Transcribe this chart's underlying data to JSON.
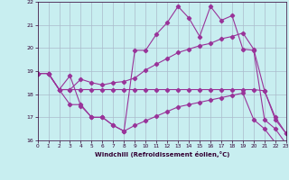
{
  "xlabel": "Windchill (Refroidissement éolien,°C)",
  "background_color": "#c8eef0",
  "grid_color": "#aabbcc",
  "line_color": "#993399",
  "xlim": [
    0,
    23
  ],
  "ylim": [
    16,
    22
  ],
  "xticks": [
    0,
    1,
    2,
    3,
    4,
    5,
    6,
    7,
    8,
    9,
    10,
    11,
    12,
    13,
    14,
    15,
    16,
    17,
    18,
    19,
    20,
    21,
    22,
    23
  ],
  "yticks": [
    16,
    17,
    18,
    19,
    20,
    21,
    22
  ],
  "line_top_x": [
    0,
    1,
    2,
    3,
    4,
    5,
    6,
    7,
    8,
    9,
    10,
    11,
    12,
    13,
    14,
    15,
    16,
    17,
    18,
    19,
    20,
    21,
    22,
    23
  ],
  "line_top_y": [
    18.9,
    18.9,
    18.2,
    18.8,
    17.5,
    17.0,
    17.0,
    16.65,
    16.4,
    19.9,
    19.9,
    20.6,
    21.1,
    21.8,
    21.3,
    20.5,
    21.8,
    21.2,
    21.4,
    19.95,
    19.9,
    16.9,
    16.5,
    15.85
  ],
  "line_avg_x": [
    0,
    1,
    2,
    3,
    4,
    5,
    6,
    7,
    8,
    9,
    10,
    11,
    12,
    13,
    14,
    15,
    16,
    17,
    18,
    19,
    20,
    21,
    22,
    23
  ],
  "line_avg_y": [
    18.9,
    18.9,
    18.2,
    18.2,
    18.65,
    18.5,
    18.4,
    18.5,
    18.55,
    18.7,
    19.05,
    19.3,
    19.55,
    19.8,
    19.95,
    20.1,
    20.2,
    20.4,
    20.5,
    20.65,
    19.95,
    18.15,
    17.0,
    16.3
  ],
  "line_flat_x": [
    0,
    1,
    2,
    3,
    4,
    5,
    6,
    7,
    8,
    9,
    10,
    11,
    12,
    13,
    14,
    15,
    16,
    17,
    18,
    19,
    20,
    21,
    22,
    23
  ],
  "line_flat_y": [
    18.9,
    18.9,
    18.2,
    18.2,
    18.2,
    18.2,
    18.2,
    18.2,
    18.2,
    18.2,
    18.2,
    18.2,
    18.2,
    18.2,
    18.2,
    18.2,
    18.2,
    18.2,
    18.2,
    18.2,
    18.2,
    18.15,
    16.9,
    16.3
  ],
  "line_bot_x": [
    0,
    1,
    2,
    3,
    4,
    5,
    6,
    7,
    8,
    9,
    10,
    11,
    12,
    13,
    14,
    15,
    16,
    17,
    18,
    19,
    20,
    21,
    22,
    23
  ],
  "line_bot_y": [
    18.9,
    18.9,
    18.2,
    17.55,
    17.55,
    17.0,
    17.0,
    16.65,
    16.4,
    16.65,
    16.85,
    17.05,
    17.25,
    17.45,
    17.55,
    17.65,
    17.75,
    17.85,
    17.95,
    18.05,
    16.9,
    16.5,
    15.9,
    15.85
  ]
}
